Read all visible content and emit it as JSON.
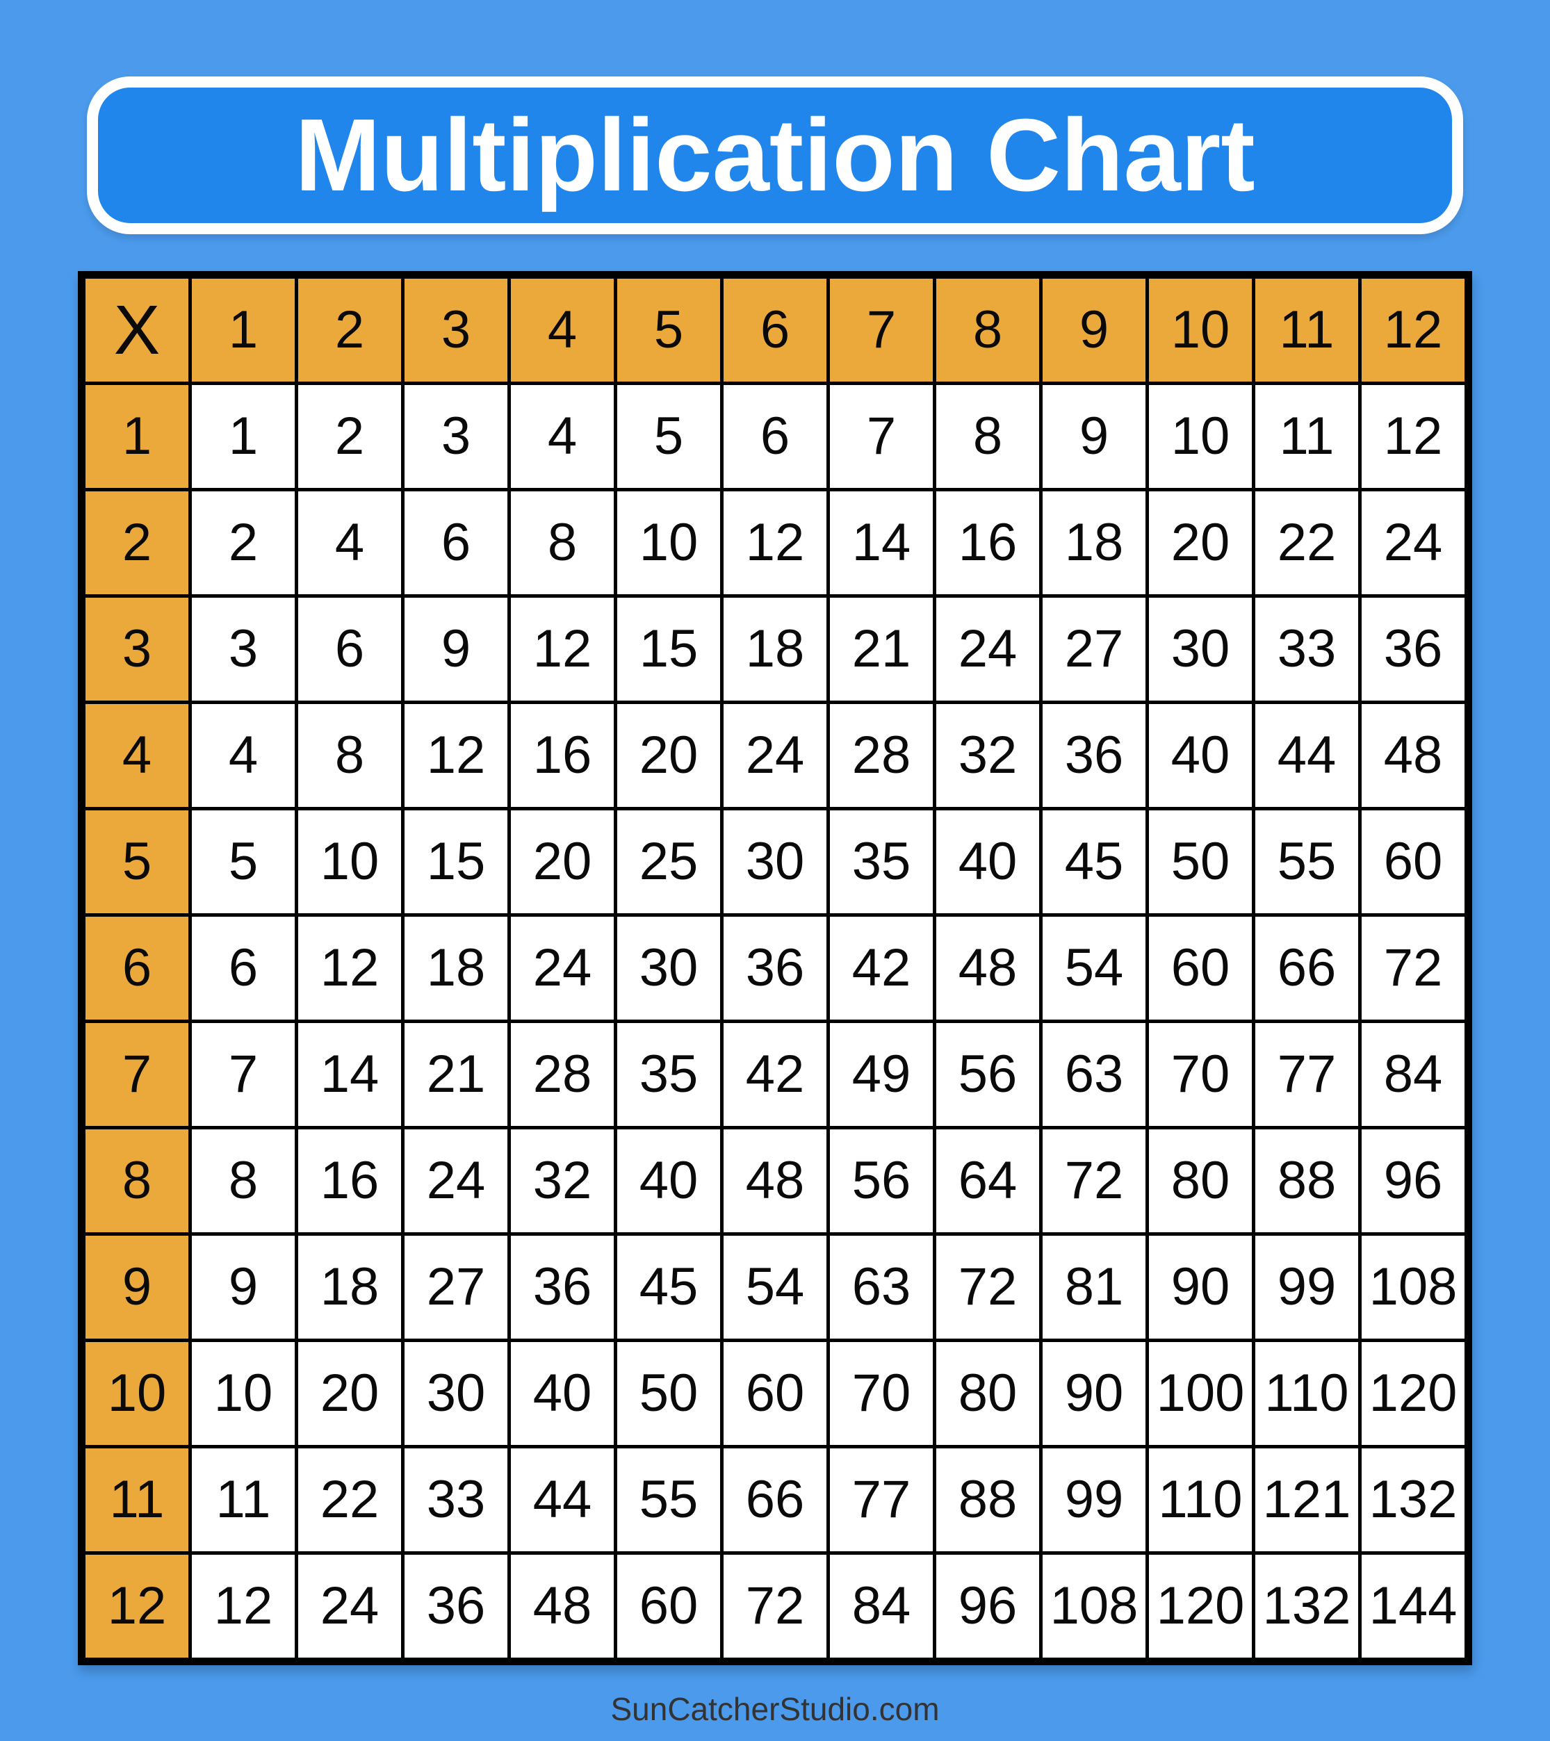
{
  "page": {
    "background_color": "#4B9AEC"
  },
  "banner": {
    "title": "Multiplication Chart",
    "fill_color": "#2186EC",
    "border_color": "#FFFFFF",
    "text_color": "#FFFFFF"
  },
  "chart_data": {
    "type": "table",
    "title": "Multiplication Chart",
    "corner_label": "X",
    "column_headers": [
      "1",
      "2",
      "3",
      "4",
      "5",
      "6",
      "7",
      "8",
      "9",
      "10",
      "11",
      "12"
    ],
    "row_headers": [
      "1",
      "2",
      "3",
      "4",
      "5",
      "6",
      "7",
      "8",
      "9",
      "10",
      "11",
      "12"
    ],
    "rows": [
      [
        1,
        2,
        3,
        4,
        5,
        6,
        7,
        8,
        9,
        10,
        11,
        12
      ],
      [
        2,
        4,
        6,
        8,
        10,
        12,
        14,
        16,
        18,
        20,
        22,
        24
      ],
      [
        3,
        6,
        9,
        12,
        15,
        18,
        21,
        24,
        27,
        30,
        33,
        36
      ],
      [
        4,
        8,
        12,
        16,
        20,
        24,
        28,
        32,
        36,
        40,
        44,
        48
      ],
      [
        5,
        10,
        15,
        20,
        25,
        30,
        35,
        40,
        45,
        50,
        55,
        60
      ],
      [
        6,
        12,
        18,
        24,
        30,
        36,
        42,
        48,
        54,
        60,
        66,
        72
      ],
      [
        7,
        14,
        21,
        28,
        35,
        42,
        49,
        56,
        63,
        70,
        77,
        84
      ],
      [
        8,
        16,
        24,
        32,
        40,
        48,
        56,
        64,
        72,
        80,
        88,
        96
      ],
      [
        9,
        18,
        27,
        36,
        45,
        54,
        63,
        72,
        81,
        90,
        99,
        108
      ],
      [
        10,
        20,
        30,
        40,
        50,
        60,
        70,
        80,
        90,
        100,
        110,
        120
      ],
      [
        11,
        22,
        33,
        44,
        55,
        66,
        77,
        88,
        99,
        110,
        121,
        132
      ],
      [
        12,
        24,
        36,
        48,
        60,
        72,
        84,
        96,
        108,
        120,
        132,
        144
      ]
    ],
    "header_fill_color": "#EAA93A",
    "cell_fill_color": "#FFFFFF",
    "grid_line_color": "#000000",
    "cell_text_color": "#0A0A0A",
    "legend_position": "none",
    "grid": "on"
  },
  "footer": {
    "credit": "SunCatcherStudio.com",
    "text_color": "#333333"
  }
}
